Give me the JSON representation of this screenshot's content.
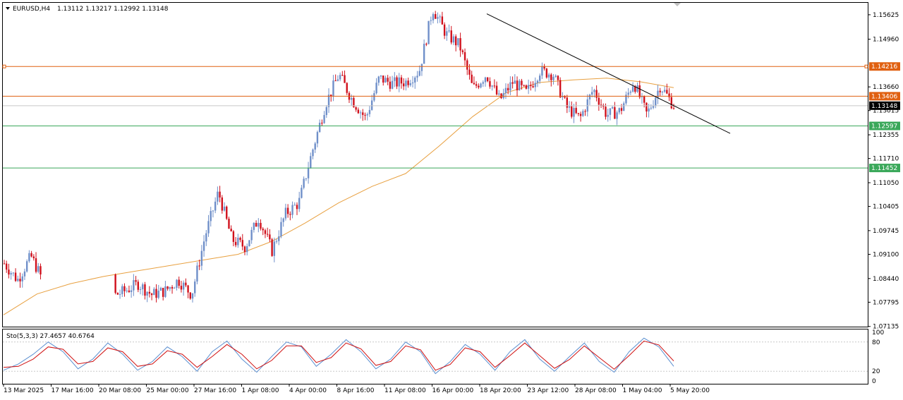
{
  "header": {
    "symbol": "EURUSD,H4",
    "ohlc": "1.13112 1.13217 1.12992 1.13148"
  },
  "oscillator": {
    "label": "Sto(5,3,3) 27.4657 40.6764",
    "levels": [
      "100",
      "80",
      "20",
      "0"
    ]
  },
  "colors": {
    "bull": "#6f8fc9",
    "bear": "#d0101c",
    "ma": "#e8a040",
    "trendline": "#000000",
    "resistance": "#e06010",
    "support": "#3aa85a",
    "current": "#000000",
    "stoch_main": "#5b8fd0",
    "stoch_signal": "#d01010"
  },
  "chart_data": [
    {
      "type": "candlestick",
      "symbol": "EURUSD",
      "timeframe": "H4",
      "ylim": [
        1.0713,
        1.1595
      ],
      "y_ticks": [
        "1.15625",
        "1.14960",
        "1.13660",
        "1.13015",
        "1.12355",
        "1.11710",
        "1.11050",
        "1.10405",
        "1.09745",
        "1.09100",
        "1.08440",
        "1.07795",
        "1.07135"
      ],
      "x_ticks": [
        "13 Mar 2025",
        "17 Mar 16:00",
        "20 Mar 08:00",
        "25 Mar 00:00",
        "27 Mar 16:00",
        "1 Apr 08:00",
        "4 Apr 00:00",
        "8 Apr 16:00",
        "11 Apr 08:00",
        "16 Apr 00:00",
        "18 Apr 20:00",
        "23 Apr 12:00",
        "28 Apr 08:00",
        "1 May 04:00",
        "5 May 20:00"
      ],
      "price_lines": [
        {
          "name": "resistance-1",
          "value": 1.14216,
          "label": "1.14216",
          "kind": "resistance"
        },
        {
          "name": "resistance-2",
          "value": 1.13406,
          "label": "1.13406",
          "kind": "resistance"
        },
        {
          "name": "current-price",
          "value": 1.13148,
          "label": "1.13148",
          "kind": "current"
        },
        {
          "name": "support-1",
          "value": 1.12597,
          "label": "1.12597",
          "kind": "support"
        },
        {
          "name": "support-2",
          "value": 1.11452,
          "label": "1.11452",
          "kind": "support"
        }
      ],
      "trendline": {
        "start": {
          "x": "18 Apr 20:00",
          "y": 1.1565
        },
        "end": {
          "x": "5 May 20:00",
          "y": 1.1297
        }
      },
      "moving_average_path": [
        1.0745,
        1.0802,
        1.083,
        1.085,
        1.0865,
        1.088,
        1.0895,
        1.091,
        1.0945,
        1.0995,
        1.105,
        1.1095,
        1.113,
        1.1205,
        1.1285,
        1.135,
        1.1378,
        1.1385,
        1.139,
        1.138,
        1.1364
      ],
      "candle_path": [
        1.0885,
        1.084,
        1.0905,
        1.083,
        1.08,
        1.084,
        1.077,
        1.0745,
        1.0795,
        1.081,
        1.083,
        1.08,
        1.081,
        1.084,
        1.08,
        1.096,
        1.108,
        1.095,
        1.093,
        1.101,
        1.092,
        1.102,
        1.105,
        1.119,
        1.132,
        1.14,
        1.133,
        1.128,
        1.139,
        1.1375,
        1.138,
        1.141,
        1.158,
        1.151,
        1.148,
        1.136,
        1.14,
        1.133,
        1.138,
        1.135,
        1.141,
        1.14,
        1.131,
        1.128,
        1.136,
        1.129,
        1.13,
        1.138,
        1.129,
        1.137,
        1.1315
      ],
      "stochastic": {
        "current_main": 27.4657,
        "current_signal": 40.6764,
        "main_path": [
          22,
          35,
          55,
          80,
          60,
          25,
          45,
          78,
          55,
          22,
          40,
          70,
          50,
          20,
          60,
          82,
          45,
          18,
          50,
          80,
          70,
          30,
          55,
          85,
          60,
          25,
          45,
          80,
          60,
          15,
          40,
          75,
          55,
          22,
          60,
          85,
          45,
          20,
          50,
          78,
          40,
          18,
          60,
          88,
          70,
          30
        ],
        "signal_path": [
          28,
          30,
          45,
          70,
          65,
          35,
          40,
          68,
          60,
          30,
          35,
          62,
          55,
          28,
          50,
          75,
          55,
          25,
          42,
          72,
          72,
          38,
          48,
          78,
          66,
          32,
          40,
          72,
          64,
          22,
          34,
          68,
          60,
          28,
          52,
          78,
          52,
          26,
          44,
          72,
          48,
          24,
          52,
          82,
          74,
          41
        ]
      }
    }
  ]
}
